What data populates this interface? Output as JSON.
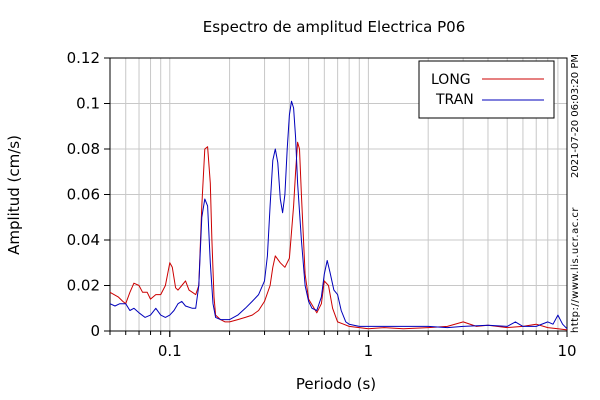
{
  "chart_data": {
    "type": "line",
    "title": "Espectro de amplitud Electrica P06",
    "xlabel": "Periodo (s)",
    "ylabel": "Amplitud (cm/s)",
    "x_scale": "log",
    "xlim": [
      0.05,
      10
    ],
    "ylim": [
      0,
      0.12
    ],
    "x_ticks": [
      {
        "value": 0.1,
        "label": "0.1"
      },
      {
        "value": 1,
        "label": "1"
      },
      {
        "value": 10,
        "label": "10"
      }
    ],
    "y_ticks": [
      {
        "value": 0,
        "label": "0"
      },
      {
        "value": 0.02,
        "label": "0.02"
      },
      {
        "value": 0.04,
        "label": "0.04"
      },
      {
        "value": 0.06,
        "label": "0.06"
      },
      {
        "value": 0.08,
        "label": "0.08"
      },
      {
        "value": 0.1,
        "label": "0.1"
      },
      {
        "value": 0.12,
        "label": "0.12"
      }
    ],
    "grid": true,
    "legend_position": "top-right",
    "side_labels": [
      "2021-07-20 06:03:20 PM",
      "http://www.lis.ucr.ac.cr"
    ],
    "series": [
      {
        "name": "LONG",
        "color": "#cc0000",
        "points": [
          [
            0.05,
            0.017
          ],
          [
            0.055,
            0.015
          ],
          [
            0.058,
            0.013
          ],
          [
            0.06,
            0.012
          ],
          [
            0.063,
            0.017
          ],
          [
            0.066,
            0.021
          ],
          [
            0.07,
            0.02
          ],
          [
            0.073,
            0.017
          ],
          [
            0.077,
            0.017
          ],
          [
            0.08,
            0.014
          ],
          [
            0.085,
            0.016
          ],
          [
            0.09,
            0.016
          ],
          [
            0.095,
            0.02
          ],
          [
            0.1,
            0.03
          ],
          [
            0.103,
            0.028
          ],
          [
            0.107,
            0.019
          ],
          [
            0.11,
            0.018
          ],
          [
            0.115,
            0.02
          ],
          [
            0.12,
            0.022
          ],
          [
            0.125,
            0.018
          ],
          [
            0.13,
            0.017
          ],
          [
            0.135,
            0.016
          ],
          [
            0.14,
            0.02
          ],
          [
            0.145,
            0.055
          ],
          [
            0.15,
            0.08
          ],
          [
            0.155,
            0.081
          ],
          [
            0.16,
            0.065
          ],
          [
            0.163,
            0.04
          ],
          [
            0.167,
            0.015
          ],
          [
            0.17,
            0.007
          ],
          [
            0.18,
            0.005
          ],
          [
            0.19,
            0.004
          ],
          [
            0.2,
            0.004
          ],
          [
            0.22,
            0.005
          ],
          [
            0.24,
            0.006
          ],
          [
            0.26,
            0.007
          ],
          [
            0.28,
            0.009
          ],
          [
            0.3,
            0.013
          ],
          [
            0.32,
            0.02
          ],
          [
            0.33,
            0.028
          ],
          [
            0.34,
            0.033
          ],
          [
            0.36,
            0.03
          ],
          [
            0.38,
            0.028
          ],
          [
            0.4,
            0.032
          ],
          [
            0.42,
            0.055
          ],
          [
            0.43,
            0.07
          ],
          [
            0.44,
            0.083
          ],
          [
            0.45,
            0.08
          ],
          [
            0.46,
            0.06
          ],
          [
            0.48,
            0.025
          ],
          [
            0.5,
            0.014
          ],
          [
            0.55,
            0.008
          ],
          [
            0.58,
            0.012
          ],
          [
            0.6,
            0.022
          ],
          [
            0.63,
            0.02
          ],
          [
            0.66,
            0.01
          ],
          [
            0.7,
            0.004
          ],
          [
            0.75,
            0.003
          ],
          [
            0.8,
            0.002
          ],
          [
            0.9,
            0.0015
          ],
          [
            1.0,
            0.001
          ],
          [
            1.2,
            0.0015
          ],
          [
            1.5,
            0.001
          ],
          [
            2.0,
            0.0015
          ],
          [
            2.5,
            0.002
          ],
          [
            3.0,
            0.004
          ],
          [
            3.5,
            0.002
          ],
          [
            4.0,
            0.0025
          ],
          [
            5.0,
            0.0015
          ],
          [
            6.0,
            0.002
          ],
          [
            7.0,
            0.003
          ],
          [
            8.0,
            0.0015
          ],
          [
            9.0,
            0.001
          ],
          [
            10.0,
            0.0005
          ]
        ]
      },
      {
        "name": "TRAN",
        "color": "#0000bb",
        "points": [
          [
            0.05,
            0.012
          ],
          [
            0.053,
            0.011
          ],
          [
            0.056,
            0.012
          ],
          [
            0.06,
            0.012
          ],
          [
            0.063,
            0.009
          ],
          [
            0.066,
            0.01
          ],
          [
            0.07,
            0.008
          ],
          [
            0.075,
            0.006
          ],
          [
            0.08,
            0.007
          ],
          [
            0.085,
            0.01
          ],
          [
            0.09,
            0.007
          ],
          [
            0.095,
            0.006
          ],
          [
            0.1,
            0.007
          ],
          [
            0.105,
            0.009
          ],
          [
            0.11,
            0.012
          ],
          [
            0.115,
            0.013
          ],
          [
            0.12,
            0.011
          ],
          [
            0.13,
            0.01
          ],
          [
            0.135,
            0.01
          ],
          [
            0.14,
            0.02
          ],
          [
            0.145,
            0.05
          ],
          [
            0.15,
            0.058
          ],
          [
            0.155,
            0.055
          ],
          [
            0.16,
            0.03
          ],
          [
            0.165,
            0.012
          ],
          [
            0.17,
            0.006
          ],
          [
            0.18,
            0.005
          ],
          [
            0.2,
            0.005
          ],
          [
            0.22,
            0.007
          ],
          [
            0.24,
            0.01
          ],
          [
            0.26,
            0.013
          ],
          [
            0.28,
            0.016
          ],
          [
            0.3,
            0.022
          ],
          [
            0.31,
            0.033
          ],
          [
            0.32,
            0.055
          ],
          [
            0.33,
            0.075
          ],
          [
            0.34,
            0.08
          ],
          [
            0.35,
            0.074
          ],
          [
            0.36,
            0.058
          ],
          [
            0.37,
            0.052
          ],
          [
            0.38,
            0.06
          ],
          [
            0.39,
            0.08
          ],
          [
            0.4,
            0.095
          ],
          [
            0.41,
            0.101
          ],
          [
            0.42,
            0.098
          ],
          [
            0.43,
            0.085
          ],
          [
            0.44,
            0.065
          ],
          [
            0.46,
            0.04
          ],
          [
            0.48,
            0.02
          ],
          [
            0.5,
            0.013
          ],
          [
            0.52,
            0.01
          ],
          [
            0.55,
            0.009
          ],
          [
            0.58,
            0.015
          ],
          [
            0.6,
            0.025
          ],
          [
            0.62,
            0.031
          ],
          [
            0.64,
            0.026
          ],
          [
            0.67,
            0.018
          ],
          [
            0.7,
            0.016
          ],
          [
            0.73,
            0.009
          ],
          [
            0.77,
            0.004
          ],
          [
            0.8,
            0.003
          ],
          [
            0.9,
            0.002
          ],
          [
            1.0,
            0.002
          ],
          [
            1.2,
            0.002
          ],
          [
            1.5,
            0.002
          ],
          [
            2.0,
            0.002
          ],
          [
            2.5,
            0.0015
          ],
          [
            3.0,
            0.002
          ],
          [
            4.0,
            0.0025
          ],
          [
            5.0,
            0.002
          ],
          [
            5.5,
            0.004
          ],
          [
            6.0,
            0.002
          ],
          [
            7.0,
            0.002
          ],
          [
            8.0,
            0.004
          ],
          [
            8.5,
            0.003
          ],
          [
            9.0,
            0.007
          ],
          [
            9.5,
            0.003
          ],
          [
            10.0,
            0.001
          ]
        ]
      }
    ]
  }
}
